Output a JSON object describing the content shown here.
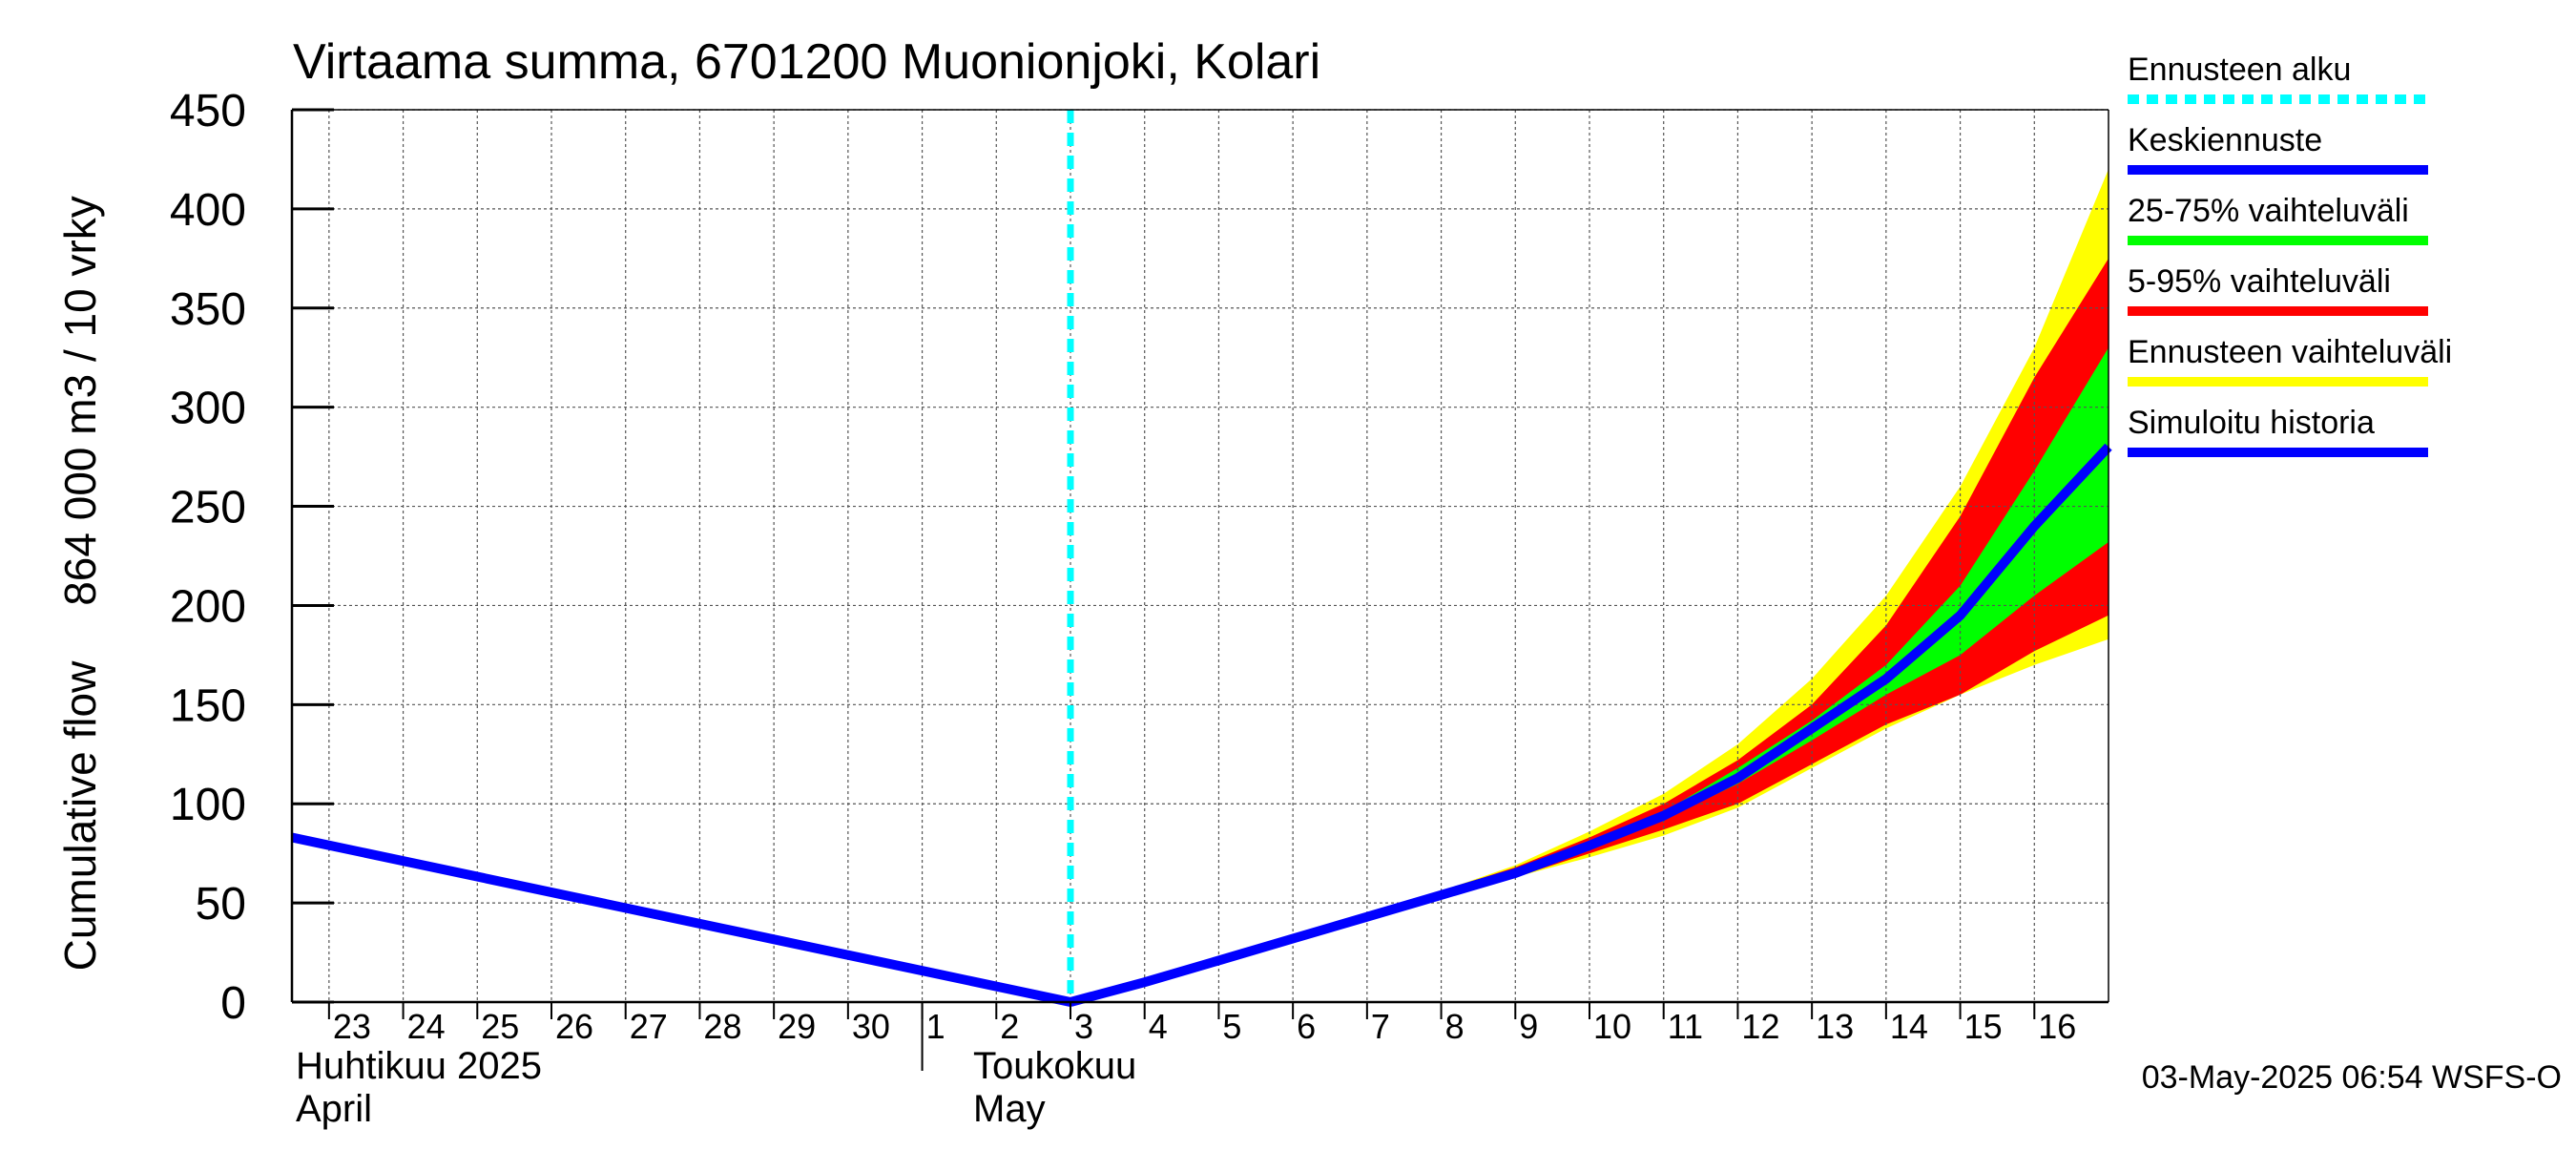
{
  "chart_data": {
    "type": "area",
    "title": "Virtaama summa, 6701200 Muonionjoki, Kolari",
    "ylabel_fi": "864 000 m3 / 10 vrky",
    "ylabel_en": "Cumulative flow",
    "ylim": [
      0,
      450
    ],
    "yticks": [
      0,
      50,
      100,
      150,
      200,
      250,
      300,
      350,
      400,
      450
    ],
    "xlim": [
      "2025-04-22T12:00",
      "2025-05-17T00:00"
    ],
    "x_day_labels": [
      "23",
      "24",
      "25",
      "26",
      "27",
      "28",
      "29",
      "30",
      "1",
      "2",
      "3",
      "4",
      "5",
      "6",
      "7",
      "8",
      "9",
      "10",
      "11",
      "12",
      "13",
      "14",
      "15",
      "16"
    ],
    "month_labels": [
      {
        "fi": "Huhtikuu  2025",
        "en": "April"
      },
      {
        "fi": "Toukokuu",
        "en": "May"
      }
    ],
    "grid": true,
    "legend_position": "right",
    "forecast_start": "2025-05-03T00:00",
    "x": [
      "2025-04-22T12:00",
      "2025-05-03T00:00",
      "2025-05-04T00:00",
      "2025-05-05T00:00",
      "2025-05-06T00:00",
      "2025-05-07T00:00",
      "2025-05-08T00:00",
      "2025-05-09T00:00",
      "2025-05-10T00:00",
      "2025-05-11T00:00",
      "2025-05-12T00:00",
      "2025-05-13T00:00",
      "2025-05-14T00:00",
      "2025-05-15T00:00",
      "2025-05-16T00:00",
      "2025-05-17T00:00"
    ],
    "series": [
      {
        "name": "Ennusteen vaihteluväli",
        "kind": "band",
        "color": "#ffff00",
        "lower": [
          null,
          0,
          10,
          21,
          32,
          43,
          53,
          63,
          73,
          84,
          98,
          118,
          138,
          155,
          170,
          183
        ],
        "upper": [
          null,
          0,
          11,
          22,
          33,
          44,
          56,
          69,
          86,
          105,
          130,
          163,
          205,
          260,
          330,
          420
        ]
      },
      {
        "name": "5-95% vaihteluväli",
        "kind": "band",
        "color": "#ff0000",
        "lower": [
          null,
          0,
          10,
          21,
          32,
          43,
          53,
          63,
          75,
          87,
          100,
          120,
          140,
          155,
          177,
          195
        ],
        "upper": [
          null,
          0,
          11,
          22,
          33,
          44,
          56,
          68,
          83,
          100,
          122,
          150,
          190,
          245,
          315,
          375
        ]
      },
      {
        "name": "25-75% vaihteluväli",
        "kind": "band",
        "color": "#00ff00",
        "lower": [
          null,
          0,
          10,
          21,
          32,
          43,
          54,
          65,
          78,
          92,
          110,
          132,
          155,
          175,
          205,
          232
        ],
        "upper": [
          null,
          0,
          10,
          21,
          32,
          43,
          55,
          66,
          80,
          96,
          118,
          142,
          170,
          210,
          268,
          330
        ]
      },
      {
        "name": "Keskiennuste",
        "kind": "line",
        "color": "#0000ff",
        "values": [
          null,
          0,
          10,
          21,
          32,
          43,
          54,
          65,
          79,
          94,
          113,
          138,
          163,
          195,
          240,
          280
        ]
      },
      {
        "name": "Simuloitu historia",
        "kind": "line",
        "color": "#0000ff",
        "values": [
          83,
          0,
          null,
          null,
          null,
          null,
          null,
          null,
          null,
          null,
          null,
          null,
          null,
          null,
          null,
          null
        ]
      }
    ],
    "legend": [
      {
        "label": "Ennusteen alku",
        "color": "#00ffff",
        "style": "dashed"
      },
      {
        "label": "Keskiennuste",
        "color": "#0000ff",
        "style": "solid"
      },
      {
        "label": "25-75% vaihteluväli",
        "color": "#00ff00",
        "style": "solid"
      },
      {
        "label": "5-95% vaihteluväli",
        "color": "#ff0000",
        "style": "solid"
      },
      {
        "label": "Ennusteen vaihteluväli",
        "color": "#ffff00",
        "style": "solid"
      },
      {
        "label": "Simuloitu historia",
        "color": "#0000ff",
        "style": "solid"
      }
    ],
    "footer": "03-May-2025 06:54 WSFS-O"
  }
}
